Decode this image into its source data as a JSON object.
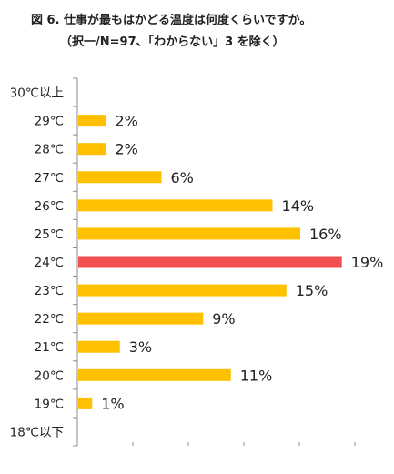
{
  "title_line1": "図 6.  仕事が最もはかどる温度は何度くらいですか。",
  "title_line2": "（択一/N=97、「わからない」3 を除く）",
  "colors": {
    "bar": "#FFC000",
    "highlight": "#F25050",
    "axis": "#8C8C8C"
  },
  "chart_data": {
    "type": "bar",
    "orientation": "horizontal",
    "title": "図 6.  仕事が最もはかどる温度は何度くらいですか。",
    "subtitle": "（択一/N=97、「わからない」3 を除く）",
    "categories": [
      "30℃以上",
      "29℃",
      "28℃",
      "27℃",
      "26℃",
      "25℃",
      "24℃",
      "23℃",
      "22℃",
      "21℃",
      "20℃",
      "19℃",
      "18℃以下"
    ],
    "values": [
      0,
      2,
      2,
      6,
      14,
      16,
      19,
      15,
      9,
      3,
      11,
      1,
      0
    ],
    "data_labels": [
      "",
      "2%",
      "2%",
      "6%",
      "14%",
      "16%",
      "19%",
      "15%",
      "9%",
      "3%",
      "11%",
      "1%",
      ""
    ],
    "highlight_category": "24℃",
    "xlim": [
      0,
      20
    ],
    "grid": false
  }
}
